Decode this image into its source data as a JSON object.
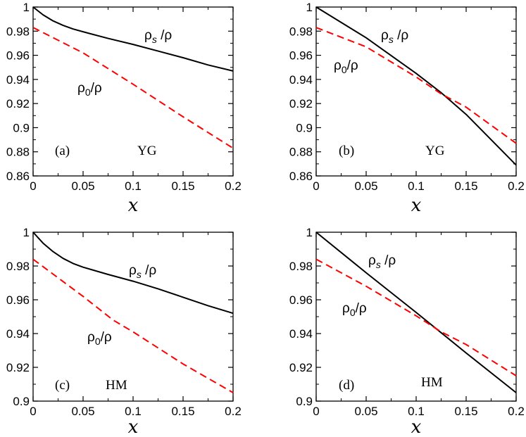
{
  "chart_data": [
    {
      "type": "line",
      "panel_label": "(a)",
      "model_label": "YG",
      "xlabel": "x",
      "xlim": [
        0,
        0.2
      ],
      "ylim": [
        0.86,
        1.0
      ],
      "xticks": [
        "0",
        "0.05",
        "0.1",
        "0.15",
        "0.2"
      ],
      "yticks": [
        "0.86",
        "0.88",
        "0.9",
        "0.92",
        "0.94",
        "0.96",
        "0.98",
        "1"
      ],
      "series": [
        {
          "name": "ρ_s/ρ",
          "label_main": "ρ",
          "label_sub": "s",
          "label_tail": " /ρ",
          "color": "#000000",
          "dashed": false,
          "x": [
            0,
            0.01,
            0.02,
            0.03,
            0.04,
            0.05,
            0.075,
            0.1,
            0.125,
            0.15,
            0.175,
            0.2
          ],
          "y": [
            1.0,
            0.9935,
            0.9885,
            0.9848,
            0.9818,
            0.9795,
            0.974,
            0.969,
            0.9635,
            0.958,
            0.952,
            0.947
          ]
        },
        {
          "name": "ρ_0/ρ",
          "label_main": "ρ",
          "label_sub": "0",
          "label_tail": "/ρ",
          "color": "#ff0000",
          "dashed": true,
          "x": [
            0,
            0.05,
            0.1,
            0.15,
            0.2
          ],
          "y": [
            0.983,
            0.962,
            0.936,
            0.909,
            0.883
          ]
        }
      ]
    },
    {
      "type": "line",
      "panel_label": "(b)",
      "model_label": "YG",
      "xlabel": "x",
      "xlim": [
        0,
        0.2
      ],
      "ylim": [
        0.86,
        1.0
      ],
      "xticks": [
        "0",
        "0.05",
        "0.1",
        "0.15",
        "0.2"
      ],
      "yticks": [
        "0.86",
        "0.88",
        "0.9",
        "0.92",
        "0.94",
        "0.96",
        "0.98",
        "1"
      ],
      "series": [
        {
          "name": "ρ_s/ρ",
          "label_main": "ρ",
          "label_sub": "s",
          "label_tail": " /ρ",
          "color": "#000000",
          "dashed": false,
          "x": [
            0,
            0.05,
            0.1,
            0.125,
            0.15,
            0.2
          ],
          "y": [
            1.0,
            0.9745,
            0.945,
            0.929,
            0.911,
            0.869
          ]
        },
        {
          "name": "ρ_0/ρ",
          "label_main": "ρ",
          "label_sub": "0",
          "label_tail": "/ρ",
          "color": "#ff0000",
          "dashed": true,
          "x": [
            0,
            0.05,
            0.1,
            0.125,
            0.15,
            0.2
          ],
          "y": [
            0.983,
            0.967,
            0.942,
            0.928,
            0.917,
            0.887
          ]
        }
      ]
    },
    {
      "type": "line",
      "panel_label": "(c)",
      "model_label": "HM",
      "xlabel": "x",
      "xlim": [
        0,
        0.2
      ],
      "ylim": [
        0.9,
        1.0
      ],
      "xticks": [
        "0",
        "0.05",
        "0.1",
        "0.15",
        "0.2"
      ],
      "yticks": [
        "0.9",
        "0.92",
        "0.94",
        "0.96",
        "0.98",
        "1"
      ],
      "series": [
        {
          "name": "ρ_s/ρ",
          "label_main": "ρ",
          "label_sub": "s",
          "label_tail": " /ρ",
          "color": "#000000",
          "dashed": false,
          "x": [
            0,
            0.01,
            0.02,
            0.03,
            0.04,
            0.05,
            0.075,
            0.1,
            0.125,
            0.15,
            0.175,
            0.2
          ],
          "y": [
            1.0,
            0.9935,
            0.9885,
            0.9845,
            0.9815,
            0.9793,
            0.975,
            0.971,
            0.9665,
            0.9615,
            0.9565,
            0.952
          ]
        },
        {
          "name": "ρ_0/ρ",
          "label_main": "ρ",
          "label_sub": "0",
          "label_tail": "/ρ",
          "color": "#ff0000",
          "dashed": true,
          "x": [
            0,
            0.05,
            0.08,
            0.1,
            0.15,
            0.2
          ],
          "y": [
            0.984,
            0.962,
            0.948,
            0.941,
            0.922,
            0.905
          ]
        }
      ]
    },
    {
      "type": "line",
      "panel_label": "(d)",
      "model_label": "HM",
      "xlabel": "x",
      "xlim": [
        0,
        0.2
      ],
      "ylim": [
        0.9,
        1.0
      ],
      "xticks": [
        "0",
        "0.05",
        "0.1",
        "0.15",
        "0.2"
      ],
      "yticks": [
        "0.9",
        "0.92",
        "0.94",
        "0.96",
        "0.98",
        "1"
      ],
      "series": [
        {
          "name": "ρ_s/ρ",
          "label_main": "ρ",
          "label_sub": "s",
          "label_tail": " /ρ",
          "color": "#000000",
          "dashed": false,
          "x": [
            0,
            0.05,
            0.1,
            0.125,
            0.15,
            0.2
          ],
          "y": [
            1.0,
            0.976,
            0.9525,
            0.9405,
            0.9285,
            0.905
          ]
        },
        {
          "name": "ρ_0/ρ",
          "label_main": "ρ",
          "label_sub": "0",
          "label_tail": "/ρ",
          "color": "#ff0000",
          "dashed": true,
          "x": [
            0,
            0.05,
            0.1,
            0.125,
            0.15,
            0.2
          ],
          "y": [
            0.984,
            0.968,
            0.9505,
            0.941,
            0.9335,
            0.915
          ]
        }
      ]
    }
  ]
}
